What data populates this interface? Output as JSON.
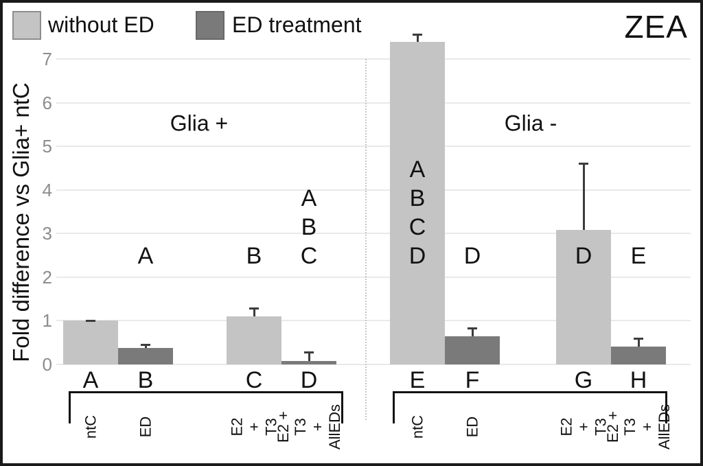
{
  "title": "ZEA",
  "ylabel": "Fold difference vs Glia+ ntC",
  "legend": {
    "items": [
      {
        "label": "without ED",
        "series": "without ED"
      },
      {
        "label": "ED treatment",
        "series": "ED treatment"
      }
    ]
  },
  "colors": {
    "bar_light": "#c4c4c4",
    "bar_dark": "#7a7a7a",
    "swatch_light_border": "#8d8d8d",
    "swatch_dark_border": "#676767",
    "error_bar": "#3c3c3c",
    "gridline": "#e9e9e9",
    "tick_label": "#8c8c8c",
    "divider": "#c6c6c6",
    "frame": "#1a1a1a",
    "text": "#111111"
  },
  "chart_data": {
    "type": "bar",
    "title": "ZEA",
    "ylabel": "Fold difference vs Glia+ ntC",
    "ylim": [
      0,
      7.6
    ],
    "yticks": [
      0,
      1,
      2,
      3,
      4,
      5,
      6,
      7
    ],
    "grid": true,
    "legend_position": "top-left",
    "series_names": [
      "without ED",
      "ED treatment"
    ],
    "groups": [
      {
        "label": "Glia +",
        "bars": [
          {
            "id": "A",
            "condition": "ntC",
            "condition_lines": [
              "ntC"
            ],
            "series": "without ED",
            "value": 1.0,
            "error_up": 0.03,
            "sig_letters": []
          },
          {
            "id": "B",
            "condition": "ED",
            "condition_lines": [
              "ED"
            ],
            "series": "ED treatment",
            "value": 0.37,
            "error_up": 0.1,
            "sig_letters": [
              "A"
            ]
          },
          {
            "id": "C",
            "condition": "E2 + T3",
            "condition_lines": [
              "E2 + T3"
            ],
            "series": "without ED",
            "value": 1.1,
            "error_up": 0.21,
            "sig_letters": [
              "B"
            ]
          },
          {
            "id": "D",
            "condition": "E2 + T3 + AllEDs",
            "condition_lines": [
              "E2 + T3",
              "+ AllEDs"
            ],
            "series": "ED treatment",
            "value": 0.08,
            "error_up": 0.22,
            "sig_letters": [
              "A",
              "B",
              "C"
            ]
          }
        ]
      },
      {
        "label": "Glia -",
        "bars": [
          {
            "id": "E",
            "condition": "ntC",
            "condition_lines": [
              "ntC"
            ],
            "series": "without ED",
            "value": 7.4,
            "error_up": 0.18,
            "sig_letters": [
              "A",
              "B",
              "C",
              "D"
            ]
          },
          {
            "id": "F",
            "condition": "ED",
            "condition_lines": [
              "ED"
            ],
            "series": "ED treatment",
            "value": 0.64,
            "error_up": 0.21,
            "sig_letters": [
              "D"
            ]
          },
          {
            "id": "G",
            "condition": "E2 + T3",
            "condition_lines": [
              "E2 + T3"
            ],
            "series": "without ED",
            "value": 3.08,
            "error_up": 1.54,
            "sig_letters": [
              "D"
            ]
          },
          {
            "id": "H",
            "condition": "E2 + T3 + AllEDs",
            "condition_lines": [
              "E2 + T3",
              "+ AllEDs"
            ],
            "series": "ED treatment",
            "value": 0.41,
            "error_up": 0.2,
            "sig_letters": [
              "E"
            ]
          }
        ]
      }
    ]
  }
}
